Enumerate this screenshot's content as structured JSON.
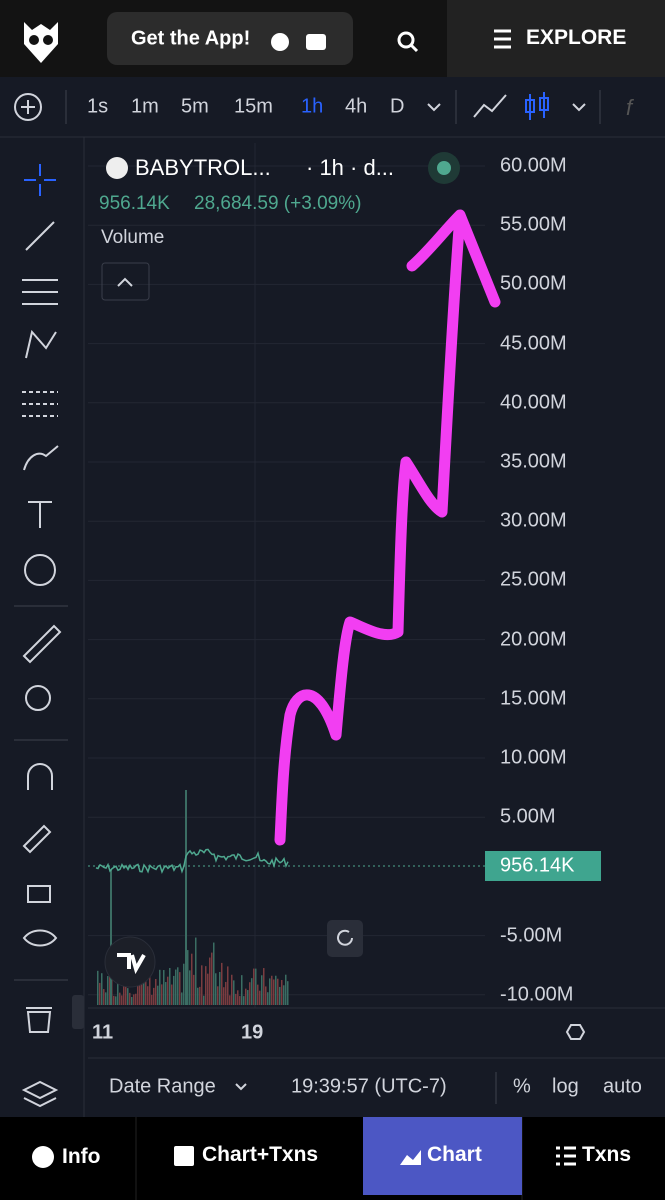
{
  "header": {
    "app_button": "Get the App!",
    "explore": "EXPLORE"
  },
  "toolbar": {
    "intervals": [
      "1s",
      "1m",
      "5m",
      "15m",
      "1h",
      "4h",
      "D"
    ],
    "active_interval": "1h"
  },
  "legend": {
    "symbol": "BABYTROL...",
    "interval_info": "· 1h · d...",
    "price": "956.14K",
    "change": "28,684.59 (+3.09%)",
    "study": "Volume"
  },
  "price_axis": {
    "ticks": [
      "60.00M",
      "55.00M",
      "50.00M",
      "45.00M",
      "40.00M",
      "35.00M",
      "30.00M",
      "25.00M",
      "20.00M",
      "15.00M",
      "10.00M",
      "5.00M",
      "-5.00M",
      "-10.00M"
    ],
    "current_price": "956.14K"
  },
  "time_axis": {
    "ticks": [
      "11",
      "19"
    ]
  },
  "bottom_bar": {
    "date_range": "Date Range",
    "time": "19:39:57 (UTC-7)",
    "percent": "%",
    "log": "log",
    "auto": "auto"
  },
  "tabs": [
    "Info",
    "Chart+Txns",
    "Chart",
    "Txns"
  ],
  "active_tab": "Chart"
}
